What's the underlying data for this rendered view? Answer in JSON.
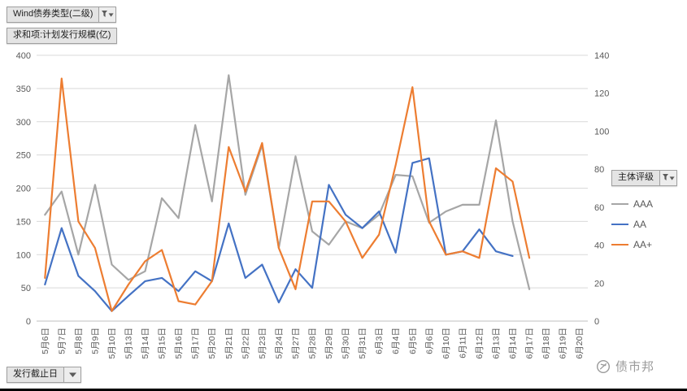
{
  "pivot": {
    "series_field_button": "Wind债券类型(二级)",
    "value_field_button": "求和项:计划发行规模(亿)",
    "axis_field_button": "发行截止日",
    "legend_field_button": "主体评级"
  },
  "watermark": {
    "text": "债市邦"
  },
  "icons": {
    "field_filter_icon": "funnel-with-caret-down",
    "watermark_logo_icon": "round-badge"
  },
  "colors": {
    "gridline": "#d9d9d9",
    "axis_line": "#bfbfbf",
    "axis_text": "#595959",
    "button_bg": "#e4e4e4",
    "button_border": "#a0a0a0",
    "watermark": "#9a9a9a"
  },
  "chart_data": {
    "type": "line",
    "title": "",
    "xlabel": "发行截止日",
    "ylabel": "求和项:计划发行规模(亿)",
    "grid": true,
    "legend_position": "right",
    "left_axis": {
      "min": 0,
      "max": 400,
      "step": 50
    },
    "right_axis": {
      "min": 0,
      "max": 140,
      "step": 20
    },
    "categories": [
      "5月6日",
      "5月7日",
      "5月8日",
      "5月9日",
      "5月10日",
      "5月13日",
      "5月14日",
      "5月15日",
      "5月16日",
      "5月17日",
      "5月20日",
      "5月21日",
      "5月22日",
      "5月23日",
      "5月24日",
      "5月27日",
      "5月28日",
      "5月29日",
      "5月30日",
      "5月31日",
      "6月3日",
      "6月4日",
      "6月5日",
      "6月6日",
      "6月10日",
      "6月11日",
      "6月12日",
      "6月13日",
      "6月14日",
      "6月17日",
      "6月18日",
      "6月19日",
      "6月20日"
    ],
    "series": [
      {
        "name": "AAA",
        "color": "#a6a6a6",
        "values": [
          160,
          195,
          100,
          205,
          85,
          62,
          75,
          185,
          155,
          295,
          180,
          370,
          190,
          265,
          110,
          248,
          135,
          115,
          150,
          140,
          160,
          220,
          218,
          148,
          165,
          175,
          175,
          302,
          150,
          48,
          null,
          null,
          null
        ]
      },
      {
        "name": "AA",
        "color": "#4472c4",
        "values": [
          55,
          140,
          68,
          45,
          15,
          38,
          60,
          65,
          45,
          75,
          60,
          147,
          65,
          85,
          28,
          78,
          50,
          205,
          160,
          140,
          165,
          103,
          238,
          245,
          100,
          105,
          138,
          105,
          98,
          null,
          null,
          null,
          null
        ]
      },
      {
        "name": "AA+",
        "color": "#ed7d31",
        "values": [
          65,
          365,
          150,
          110,
          15,
          55,
          90,
          107,
          30,
          25,
          60,
          262,
          195,
          268,
          110,
          48,
          180,
          180,
          150,
          95,
          130,
          235,
          352,
          150,
          100,
          105,
          95,
          230,
          210,
          95,
          null,
          null,
          null
        ]
      }
    ]
  }
}
